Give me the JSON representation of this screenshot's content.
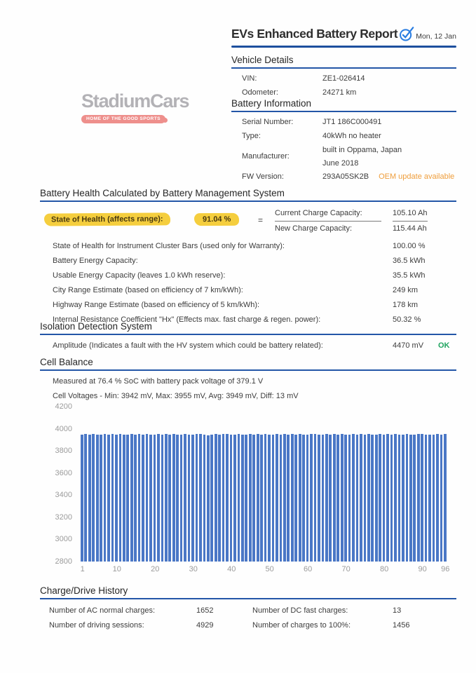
{
  "header": {
    "title": "EVs Enhanced Battery Report",
    "date": "Mon, 12 Jan",
    "accent_color": "#1d4f9e",
    "check_color": "#2a7de1"
  },
  "logo": {
    "name": "StadiumCars",
    "tagline": "HOME OF THE GOOD SPORTS",
    "name_color": "#b3b2b6",
    "pill_color": "#ee8f8c"
  },
  "vehicle_details": {
    "heading": "Vehicle Details",
    "rows": [
      {
        "label": "VIN:",
        "value": "ZE1-026414"
      },
      {
        "label": "Odometer:",
        "value": "24271 km"
      }
    ]
  },
  "battery_information": {
    "heading": "Battery Information",
    "rows": [
      {
        "label": "Serial Number:",
        "value": "JT1 186C000491"
      },
      {
        "label": "Type:",
        "value": "40kWh no heater"
      },
      {
        "label": "Manufacturer:",
        "value": "built in Oppama, Japan",
        "value2": "June 2018"
      },
      {
        "label": "FW Version:",
        "value": "293A05SK2B",
        "note": "OEM update available",
        "note_color": "#ef9e3c"
      }
    ]
  },
  "battery_health": {
    "heading": "Battery Health Calculated by Battery Management System",
    "soh": {
      "label": "State of Health (affects range):",
      "value": "91.04 %",
      "equals": "=",
      "numerator_label": "Current Charge Capacity:",
      "numerator_value": "105.10 Ah",
      "denominator_label": "New Charge Capacity:",
      "denominator_value": "115.44 Ah",
      "highlight_color": "#f5ce3e"
    },
    "rows": [
      {
        "label": "State of Health for Instrument Cluster Bars (used only for Warranty):",
        "value": "100.00 %"
      },
      {
        "label": "Battery Energy Capacity:",
        "value": "36.5 kWh"
      },
      {
        "label": "Usable Energy Capacity (leaves 1.0 kWh reserve):",
        "value": "35.5 kWh"
      },
      {
        "label": "City Range Estimate (based on efficiency of 7 km/kWh):",
        "value": "249 km"
      },
      {
        "label": "Highway Range Estimate (based on efficiency of 5 km/kWh):",
        "value": "178 km"
      },
      {
        "label": "Internal Resistance Coefficient \"Hx\" (Effects max. fast charge & regen. power):",
        "value": "50.32 %"
      }
    ]
  },
  "isolation": {
    "heading": "Isolation Detection System",
    "row": {
      "label": "Amplitude (Indicates a fault with the HV system which could be battery related):",
      "value": "4470 mV",
      "status": "OK",
      "status_color": "#1fa45f"
    }
  },
  "cell_balance": {
    "heading": "Cell Balance",
    "line1": "Measured at 76.4 % SoC with battery pack voltage of 379.1 V",
    "line2": "Cell Voltages - Min: 3942 mV, Max: 3955 mV, Avg: 3949 mV, Diff: 13 mV"
  },
  "chart_data": {
    "type": "bar",
    "title": "",
    "xlabel": "",
    "ylabel": "",
    "unit": "mV",
    "x_count": 96,
    "ylim": [
      2800,
      4200
    ],
    "yticks": [
      2800,
      3000,
      3200,
      3400,
      3600,
      3800,
      4000,
      4200
    ],
    "xticks": [
      1,
      10,
      20,
      30,
      40,
      50,
      60,
      70,
      80,
      90,
      96
    ],
    "grid": false,
    "legend": false,
    "bar_color": "#4a77c6",
    "axis_label_color": "#9b9b9b",
    "values": [
      3948,
      3950,
      3946,
      3952,
      3949,
      3947,
      3951,
      3945,
      3950,
      3948,
      3953,
      3947,
      3949,
      3951,
      3946,
      3950,
      3948,
      3952,
      3944,
      3949,
      3951,
      3947,
      3950,
      3945,
      3953,
      3948,
      3946,
      3951,
      3949,
      3947,
      3952,
      3950,
      3948,
      3942,
      3949,
      3951,
      3947,
      3953,
      3950,
      3946,
      3948,
      3952,
      3949,
      3945,
      3951,
      3947,
      3950,
      3948,
      3955,
      3949,
      3946,
      3952,
      3948,
      3950,
      3947,
      3951,
      3949,
      3953,
      3945,
      3948,
      3950,
      3952,
      3947,
      3949,
      3951,
      3946,
      3950,
      3948,
      3953,
      3947,
      3949,
      3951,
      3945,
      3950,
      3948,
      3952,
      3946,
      3949,
      3951,
      3947,
      3950,
      3944,
      3953,
      3948,
      3946,
      3951,
      3949,
      3947,
      3952,
      3950,
      3948,
      3945,
      3949,
      3951,
      3947,
      3950
    ]
  },
  "charge_history": {
    "heading": "Charge/Drive History",
    "rows": [
      [
        {
          "label": "Number of AC normal charges:",
          "value": "1652"
        },
        {
          "label": "Number of DC fast charges:",
          "value": "13"
        }
      ],
      [
        {
          "label": "Number of driving sessions:",
          "value": "4929"
        },
        {
          "label": "Number of charges to 100%:",
          "value": "1456"
        }
      ]
    ]
  }
}
